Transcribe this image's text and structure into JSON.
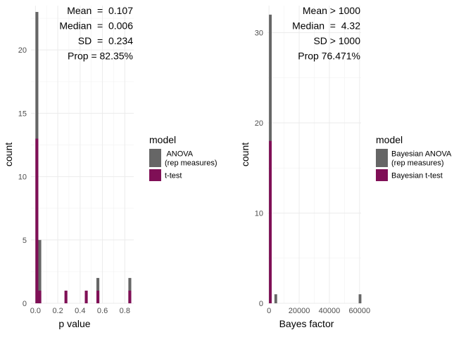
{
  "chart_data": [
    {
      "type": "bar",
      "subtype": "histogram-overlay",
      "xlabel": "p value",
      "ylabel": "count",
      "xlim": [
        -0.04,
        0.88
      ],
      "ylim": [
        0,
        23.5
      ],
      "x_ticks": [
        0.0,
        0.2,
        0.4,
        0.6,
        0.8
      ],
      "x_tick_labels": [
        "0.0",
        "0.2",
        "0.4",
        "0.6",
        "0.8"
      ],
      "y_ticks": [
        0,
        5,
        10,
        15,
        20
      ],
      "y_tick_labels": [
        "0",
        "5",
        "10",
        "15",
        "20"
      ],
      "bin_width": 0.026,
      "grid": true,
      "stats": [
        "Mean  =  0.107",
        "Median  =  0.006",
        "SD  =  0.234",
        "Prop = 82.35%"
      ],
      "legend": {
        "title": "model",
        "placement": "right",
        "entries": [
          {
            "label_lines": [
              " ANOVA",
              "(rep measures)"
            ],
            "color": "#666666"
          },
          {
            "label_lines": [
              "t-test"
            ],
            "color": "#7f0f56"
          }
        ]
      },
      "series": [
        {
          "name": "ANOVA (rep measures)",
          "color": "#666666",
          "bins": [
            {
              "x": 0.0,
              "count": 23
            },
            {
              "x": 0.026,
              "count": 5
            },
            {
              "x": 0.546,
              "count": 2
            },
            {
              "x": 0.832,
              "count": 2
            }
          ]
        },
        {
          "name": "t-test",
          "color": "#7f0f56",
          "bins": [
            {
              "x": 0.0,
              "count": 13
            },
            {
              "x": 0.026,
              "count": 1
            },
            {
              "x": 0.26,
              "count": 1
            },
            {
              "x": 0.442,
              "count": 1
            },
            {
              "x": 0.546,
              "count": 1
            },
            {
              "x": 0.832,
              "count": 1
            }
          ]
        }
      ]
    },
    {
      "type": "bar",
      "subtype": "histogram-overlay",
      "xlabel": "Bayes factor",
      "ylabel": "count",
      "xlim": [
        -1000,
        61000
      ],
      "ylim": [
        0,
        33
      ],
      "x_ticks": [
        0,
        20000,
        40000,
        60000
      ],
      "x_tick_labels": [
        "0",
        "20000",
        "40000",
        "60000"
      ],
      "y_ticks": [
        0,
        10,
        20,
        30
      ],
      "y_tick_labels": [
        "0",
        "10",
        "20",
        "30"
      ],
      "bin_width": 1800,
      "grid": true,
      "stats": [
        "Mean > 1000",
        "Median  =  4.32",
        "SD > 1000",
        "Prop 76.471%"
      ],
      "legend": {
        "title": "model",
        "placement": "right",
        "entries": [
          {
            "label_lines": [
              "Bayesian ANOVA",
              "(rep measures)"
            ],
            "color": "#666666"
          },
          {
            "label_lines": [
              "Bayesian t-test"
            ],
            "color": "#7f0f56"
          }
        ]
      },
      "series": [
        {
          "name": "Bayesian ANOVA (rep measures)",
          "color": "#666666",
          "bins": [
            {
              "x": 0,
              "count": 32
            },
            {
              "x": 3600,
              "count": 1
            },
            {
              "x": 59400,
              "count": 1
            }
          ]
        },
        {
          "name": "Bayesian t-test",
          "color": "#7f0f56",
          "bins": [
            {
              "x": 0,
              "count": 18
            }
          ]
        }
      ]
    }
  ]
}
